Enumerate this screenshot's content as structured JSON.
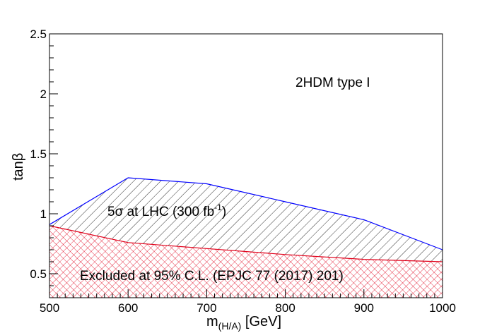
{
  "chart_data": {
    "type": "area",
    "xlabel_main": "m",
    "xlabel_sub": "(H/A)",
    "xlabel_unit": " [GeV]",
    "ylabel_main": "tan",
    "ylabel_greek": "β",
    "xlim": [
      500,
      1000
    ],
    "ylim": [
      0.3,
      2.5
    ],
    "xticks": [
      500,
      600,
      700,
      800,
      900,
      1000
    ],
    "xtick_labels": [
      "500",
      "600",
      "700",
      "800",
      "900",
      "1000"
    ],
    "yticks": [
      0.5,
      1,
      1.5,
      2,
      2.5
    ],
    "ytick_labels": [
      "0.5",
      "1",
      "1.5",
      "2",
      "2.5"
    ],
    "grid": false,
    "series": [
      {
        "label_main": "5σ at LHC (300 fb",
        "label_sup": "-1",
        "label_close": ")",
        "color": "#0000ff",
        "hatch": "diagonal",
        "x": [
          500,
          600,
          700,
          800,
          900,
          1000
        ],
        "y": [
          0.91,
          1.3,
          1.25,
          1.1,
          0.95,
          0.7
        ]
      },
      {
        "label": "Excluded at 95% C.L. (EPJC 77 (2017) 201)",
        "color": "#e0001a",
        "hatch": "cross",
        "x": [
          500,
          600,
          700,
          800,
          900,
          1000
        ],
        "y": [
          0.9,
          0.76,
          0.71,
          0.66,
          0.62,
          0.6
        ]
      }
    ],
    "annotation": "2HDM type I"
  }
}
